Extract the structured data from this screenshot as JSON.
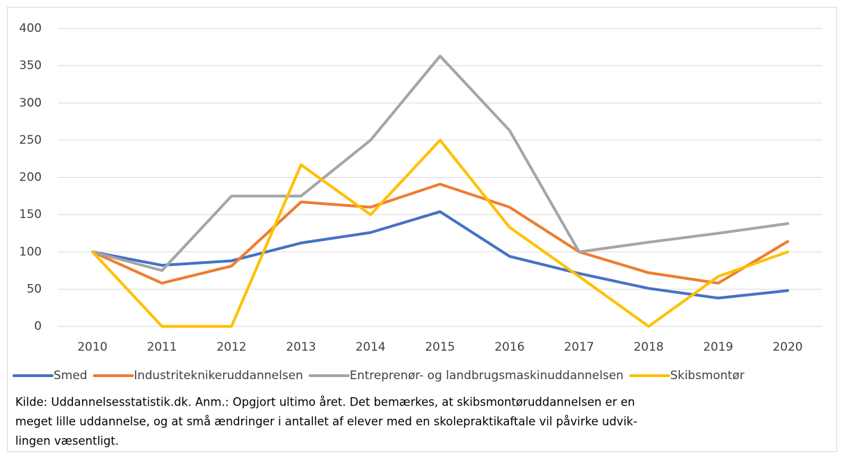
{
  "chart_data": {
    "type": "line",
    "categories": [
      "2010",
      "2011",
      "2012",
      "2013",
      "2014",
      "2015",
      "2016",
      "2017",
      "2018",
      "2019",
      "2020"
    ],
    "series": [
      {
        "name": "Smed",
        "color": "#4472c4",
        "values": [
          100,
          82,
          88,
          112,
          126,
          154,
          94,
          71,
          51,
          38,
          48
        ]
      },
      {
        "name": "Industriteknikeruddannelsen",
        "color": "#ed7d31",
        "values": [
          100,
          58,
          81,
          167,
          160,
          191,
          160,
          100,
          72,
          58,
          114
        ]
      },
      {
        "name": "Entreprenør- og landbrugsmaskinuddannelsen",
        "color": "#a5a5a5",
        "values": [
          100,
          75,
          175,
          175,
          250,
          363,
          263,
          100,
          113,
          125,
          138
        ]
      },
      {
        "name": "Skibsmontør",
        "color": "#ffc000",
        "values": [
          100,
          0,
          0,
          217,
          150,
          250,
          133,
          67,
          0,
          67,
          100
        ]
      }
    ],
    "ylim": [
      0,
      400
    ],
    "yticks": [
      0,
      50,
      100,
      150,
      200,
      250,
      300,
      350,
      400
    ],
    "grid": true,
    "legend": "bottom",
    "note": [
      "Kilde: Uddannelsesstatistik.dk. Anm.: Opgjort ultimo året. Det bemærkes, at skibsmontøruddannelsen er en",
      "meget lille uddannelse, og at små ændringer i antallet af elever med en skolepraktikaftale vil påvirke udvik-",
      "lingen væsentligt."
    ]
  }
}
